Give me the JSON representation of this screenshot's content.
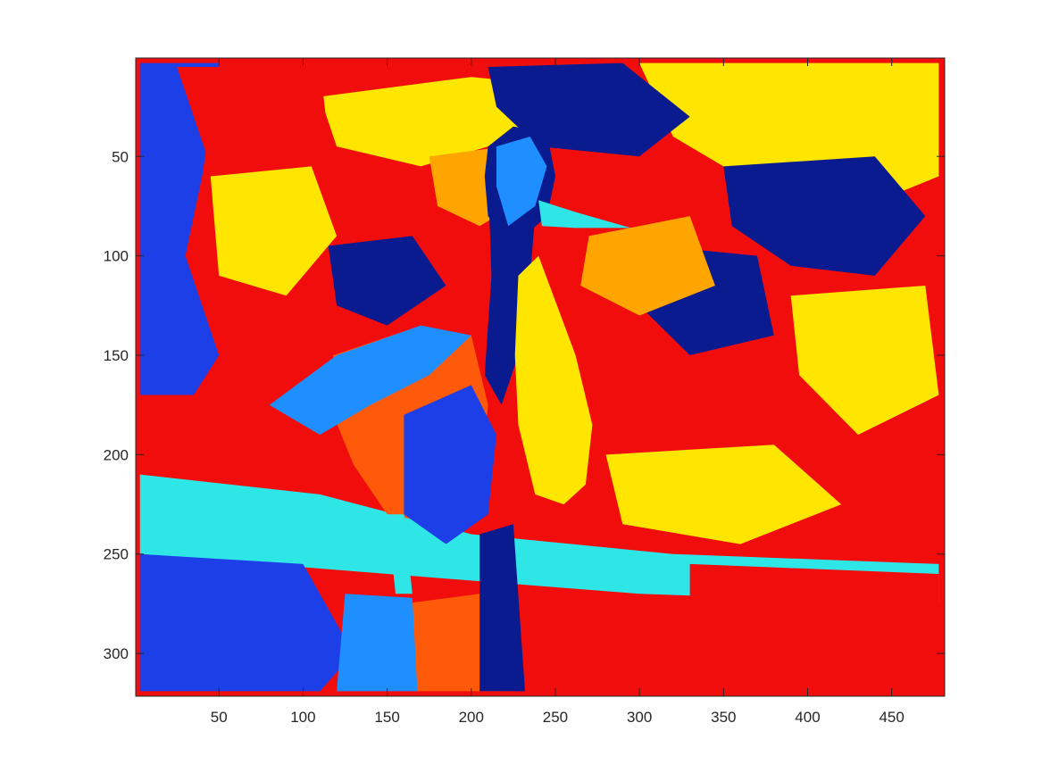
{
  "chart_data": {
    "type": "heatmap",
    "title": "",
    "xlabel": "",
    "ylabel": "",
    "xlim": [
      0.5,
      481.5
    ],
    "ylim": [
      0.5,
      321.5
    ],
    "y_direction": "reverse",
    "grid": false,
    "colorbar": false,
    "x_ticks": [
      50,
      100,
      150,
      200,
      250,
      300,
      350,
      400,
      450
    ],
    "y_ticks": [
      50,
      100,
      150,
      200,
      250,
      300
    ],
    "x_tick_labels": [
      "50",
      "100",
      "150",
      "200",
      "250",
      "300",
      "350",
      "400",
      "450"
    ],
    "y_tick_labels": [
      "50",
      "100",
      "150",
      "200",
      "250",
      "300"
    ],
    "image_size": {
      "columns": 481,
      "rows": 321
    },
    "cluster_colors": [
      "#0a1b8f",
      "#1d3fe8",
      "#1f8fff",
      "#2fe6e6",
      "#ffe600",
      "#ffa500",
      "#ff5a0a",
      "#f20d0d"
    ],
    "background_color": "#f20d0d",
    "regions": [
      {
        "label": "sky-blue-band",
        "color": "#1d3fe8",
        "polygon": [
          [
            3,
            3
          ],
          [
            50,
            3
          ],
          [
            40,
            60
          ],
          [
            30,
            100
          ],
          [
            50,
            150
          ],
          [
            35,
            170
          ],
          [
            3,
            170
          ]
        ]
      },
      {
        "label": "upper-yellow-right",
        "color": "#ffe600",
        "polygon": [
          [
            300,
            3
          ],
          [
            478,
            3
          ],
          [
            478,
            60
          ],
          [
            420,
            80
          ],
          [
            360,
            60
          ],
          [
            320,
            40
          ]
        ]
      },
      {
        "label": "upper-yellow-mid",
        "color": "#ffe600",
        "polygon": [
          [
            110,
            20
          ],
          [
            200,
            10
          ],
          [
            260,
            15
          ],
          [
            230,
            40
          ],
          [
            170,
            55
          ],
          [
            120,
            45
          ]
        ]
      },
      {
        "label": "upper-red-left",
        "color": "#f20d0d",
        "polygon": [
          [
            25,
            5
          ],
          [
            110,
            5
          ],
          [
            115,
            40
          ],
          [
            90,
            60
          ],
          [
            45,
            55
          ]
        ]
      },
      {
        "label": "navy-blob-upper",
        "color": "#0a1b8f",
        "polygon": [
          [
            210,
            5
          ],
          [
            290,
            3
          ],
          [
            330,
            30
          ],
          [
            300,
            50
          ],
          [
            240,
            45
          ],
          [
            215,
            25
          ]
        ]
      },
      {
        "label": "navy-blob-right-1",
        "color": "#0a1b8f",
        "polygon": [
          [
            350,
            55
          ],
          [
            440,
            50
          ],
          [
            470,
            80
          ],
          [
            440,
            110
          ],
          [
            390,
            105
          ],
          [
            355,
            85
          ]
        ]
      },
      {
        "label": "navy-blob-right-2",
        "color": "#0a1b8f",
        "polygon": [
          [
            310,
            95
          ],
          [
            370,
            100
          ],
          [
            380,
            140
          ],
          [
            330,
            150
          ],
          [
            300,
            125
          ]
        ]
      },
      {
        "label": "orange-blob-mid",
        "color": "#ffa500",
        "polygon": [
          [
            175,
            50
          ],
          [
            220,
            45
          ],
          [
            235,
            70
          ],
          [
            205,
            85
          ],
          [
            180,
            75
          ]
        ]
      },
      {
        "label": "orange-blob-right",
        "color": "#ffa500",
        "polygon": [
          [
            270,
            90
          ],
          [
            330,
            80
          ],
          [
            345,
            115
          ],
          [
            300,
            130
          ],
          [
            265,
            115
          ]
        ]
      },
      {
        "label": "yellow-blob-left",
        "color": "#ffe600",
        "polygon": [
          [
            45,
            60
          ],
          [
            105,
            55
          ],
          [
            120,
            90
          ],
          [
            90,
            120
          ],
          [
            50,
            110
          ]
        ]
      },
      {
        "label": "yellow-blob-mid-right",
        "color": "#ffe600",
        "polygon": [
          [
            390,
            120
          ],
          [
            470,
            115
          ],
          [
            478,
            170
          ],
          [
            430,
            190
          ],
          [
            395,
            160
          ]
        ]
      },
      {
        "label": "navy-blob-left",
        "color": "#0a1b8f",
        "polygon": [
          [
            115,
            95
          ],
          [
            165,
            90
          ],
          [
            185,
            115
          ],
          [
            150,
            135
          ],
          [
            120,
            125
          ]
        ]
      },
      {
        "label": "water-cyan-band",
        "color": "#2fe6e6",
        "polygon": [
          [
            3,
            210
          ],
          [
            110,
            220
          ],
          [
            200,
            240
          ],
          [
            320,
            250
          ],
          [
            478,
            255
          ],
          [
            478,
            275
          ],
          [
            300,
            270
          ],
          [
            150,
            260
          ],
          [
            3,
            250
          ]
        ]
      },
      {
        "label": "water-blue-left",
        "color": "#1d3fe8",
        "polygon": [
          [
            3,
            250
          ],
          [
            100,
            255
          ],
          [
            130,
            300
          ],
          [
            110,
            319
          ],
          [
            3,
            319
          ]
        ]
      },
      {
        "label": "water-yellow-mid",
        "color": "#ffe600",
        "polygon": [
          [
            280,
            200
          ],
          [
            380,
            195
          ],
          [
            420,
            225
          ],
          [
            360,
            245
          ],
          [
            290,
            235
          ]
        ]
      },
      {
        "label": "water-orange-bottom",
        "color": "#ff5a0a",
        "polygon": [
          [
            160,
            275
          ],
          [
            205,
            270
          ],
          [
            215,
            319
          ],
          [
            165,
            319
          ]
        ]
      },
      {
        "label": "water-skyblue-bottom",
        "color": "#1f8fff",
        "polygon": [
          [
            125,
            270
          ],
          [
            165,
            272
          ],
          [
            168,
            319
          ],
          [
            120,
            319
          ]
        ]
      },
      {
        "label": "water-red-right",
        "color": "#f20d0d",
        "polygon": [
          [
            330,
            255
          ],
          [
            478,
            260
          ],
          [
            478,
            319
          ],
          [
            330,
            319
          ]
        ]
      },
      {
        "label": "bird-body-orange",
        "color": "#ff5a0a",
        "polygon": [
          [
            118,
            150
          ],
          [
            160,
            138
          ],
          [
            200,
            140
          ],
          [
            210,
            175
          ],
          [
            205,
            215
          ],
          [
            180,
            235
          ],
          [
            150,
            230
          ],
          [
            130,
            205
          ],
          [
            118,
            180
          ]
        ]
      },
      {
        "label": "bird-body-blue",
        "color": "#1d3fe8",
        "polygon": [
          [
            160,
            180
          ],
          [
            200,
            165
          ],
          [
            215,
            190
          ],
          [
            210,
            230
          ],
          [
            185,
            245
          ],
          [
            160,
            230
          ]
        ]
      },
      {
        "label": "bird-wing-skyblue",
        "color": "#1f8fff",
        "polygon": [
          [
            80,
            175
          ],
          [
            120,
            150
          ],
          [
            170,
            135
          ],
          [
            200,
            140
          ],
          [
            175,
            160
          ],
          [
            140,
            175
          ],
          [
            110,
            190
          ]
        ]
      },
      {
        "label": "bird-neck-navy",
        "color": "#0a1b8f",
        "polygon": [
          [
            210,
            60
          ],
          [
            232,
            45
          ],
          [
            240,
            60
          ],
          [
            235,
            110
          ],
          [
            228,
            150
          ],
          [
            218,
            175
          ],
          [
            208,
            160
          ],
          [
            212,
            110
          ]
        ]
      },
      {
        "label": "bird-breast-yellow",
        "color": "#ffe600",
        "polygon": [
          [
            228,
            110
          ],
          [
            240,
            100
          ],
          [
            262,
            150
          ],
          [
            272,
            185
          ],
          [
            268,
            215
          ],
          [
            255,
            225
          ],
          [
            238,
            220
          ],
          [
            228,
            185
          ],
          [
            226,
            150
          ]
        ]
      },
      {
        "label": "bird-head-navy",
        "color": "#0a1b8f",
        "polygon": [
          [
            210,
            45
          ],
          [
            225,
            35
          ],
          [
            245,
            38
          ],
          [
            250,
            60
          ],
          [
            245,
            80
          ],
          [
            225,
            95
          ],
          [
            210,
            80
          ],
          [
            208,
            60
          ]
        ]
      },
      {
        "label": "bird-head-skyblue",
        "color": "#1f8fff",
        "polygon": [
          [
            215,
            45
          ],
          [
            235,
            40
          ],
          [
            245,
            55
          ],
          [
            238,
            75
          ],
          [
            222,
            85
          ],
          [
            215,
            65
          ]
        ]
      },
      {
        "label": "bird-beak-cyan",
        "color": "#2fe6e6",
        "polygon": [
          [
            240,
            72
          ],
          [
            262,
            78
          ],
          [
            295,
            86
          ],
          [
            262,
            86
          ],
          [
            242,
            85
          ]
        ]
      },
      {
        "label": "bird-legs-cyan",
        "color": "#2fe6e6",
        "polygon": [
          [
            150,
            230
          ],
          [
            160,
            230
          ],
          [
            165,
            270
          ],
          [
            155,
            270
          ]
        ]
      },
      {
        "label": "bird-reflection-navy",
        "color": "#0a1b8f",
        "polygon": [
          [
            205,
            240
          ],
          [
            225,
            235
          ],
          [
            232,
            319
          ],
          [
            205,
            319
          ]
        ]
      }
    ]
  }
}
